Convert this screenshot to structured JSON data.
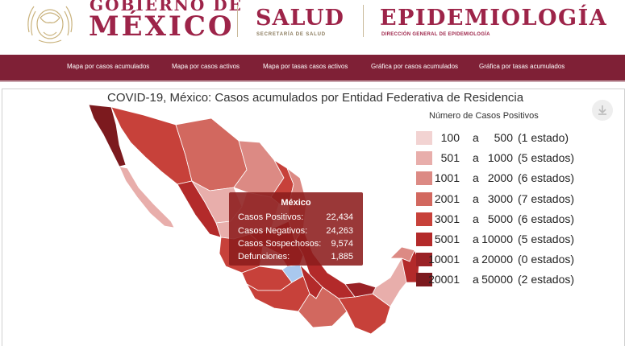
{
  "header": {
    "gobierno_line1": "GOBIERNO DE",
    "gobierno_line2": "MÉXICO",
    "salud_title": "SALUD",
    "salud_subtitle": "SECRETARÍA DE SALUD",
    "epi_title": "EPIDEMIOLOGÍA",
    "epi_subtitle": "DIRECCIÓN GENERAL DE EPIDEMIOLOGÍA"
  },
  "nav": {
    "items": [
      "Mapa por casos acumulados",
      "Mapa por casos activos",
      "Mapa por tasas casos activos",
      "Gráfica por casos acumulados",
      "Gráfica por tasas acumulados"
    ]
  },
  "map": {
    "title": "COVID-19, México: Casos acumulados por Entidad Federativa de Residencia",
    "legend_title": "Número de Casos Positivos",
    "legend": [
      {
        "min": "100",
        "sep": "a",
        "max": "500",
        "count": "(1 estado)",
        "color": "#f2d3d2"
      },
      {
        "min": "501",
        "sep": "a",
        "max": "1000",
        "count": "(5 estados)",
        "color": "#e8aeab"
      },
      {
        "min": "1001",
        "sep": "a",
        "max": "2000",
        "count": "(6 estados)",
        "color": "#dc8a84"
      },
      {
        "min": "2001",
        "sep": "a",
        "max": "3000",
        "count": "(7 estados)",
        "color": "#d2685f"
      },
      {
        "min": "3001",
        "sep": "a",
        "max": "5000",
        "count": "(6 estados)",
        "color": "#c7413a"
      },
      {
        "min": "5001",
        "sep": "a",
        "max": "10000",
        "count": "(5 estados)",
        "color": "#b32a2a"
      },
      {
        "min": "10001",
        "sep": "a",
        "max": "20000",
        "count": "(0 estados)",
        "color": "#9a2226"
      },
      {
        "min": "20001",
        "sep": "a",
        "max": "50000",
        "count": "(2 estados)",
        "color": "#7c1a1e"
      }
    ],
    "tooltip": {
      "title": "México",
      "rows": [
        {
          "label": "Casos Positivos:",
          "value": "22,434"
        },
        {
          "label": "Casos Negativos:",
          "value": "24,263"
        },
        {
          "label": "Casos Sospechosos:",
          "value": "9,574"
        },
        {
          "label": "Defunciones:",
          "value": "1,885"
        }
      ]
    },
    "colors": {
      "brand": "#9d2449",
      "nav_bg": "#7f2036",
      "highlight": "#a9c8ee"
    }
  }
}
